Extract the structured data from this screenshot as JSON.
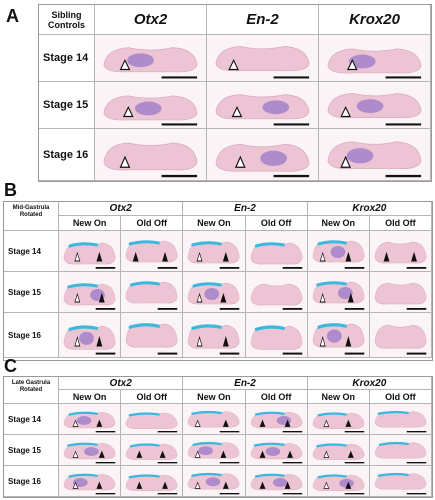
{
  "panels": [
    {
      "label": "A",
      "corner": "Sibling Controls",
      "columns": [
        "Otx2",
        "En-2",
        "Krox20"
      ],
      "rows": [
        "Stage 14",
        "Stage 15",
        "Stage 16"
      ]
    },
    {
      "label": "B",
      "corner": "Mid-Gastrula Rotated",
      "columns": [
        "Otx2",
        "En-2",
        "Krox20"
      ],
      "subcolumns": [
        "New On",
        "Old Off"
      ],
      "rows": [
        "Stage 14",
        "Stage 15",
        "Stage 16"
      ]
    },
    {
      "label": "C",
      "corner": "Late Gastrula Rotated",
      "columns": [
        "Otx2",
        "En-2",
        "Krox20"
      ],
      "subcolumns": [
        "New On",
        "Old Off"
      ],
      "rows": [
        "Stage 14",
        "Stage 15",
        "Stage 16"
      ]
    }
  ],
  "colors": {
    "tissue": "#ecc4d3",
    "stain_purple": "#9a78c8",
    "stain_blue": "#3cb8dc",
    "scale_bar": "#111111",
    "border": "#9a9a9a"
  }
}
